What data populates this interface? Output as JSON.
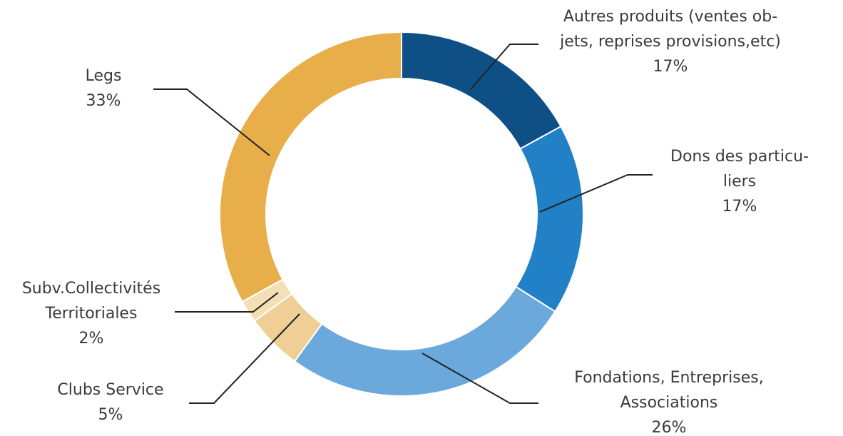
{
  "chart_data": {
    "type": "pie",
    "categories": [
      "Autres produits (ventes ob-\njets, reprises provisions,etc)",
      "Dons des particu-\nliers",
      "Fondations, Entreprises,\nAssociations",
      "Clubs Service",
      "Subv.Collectivités\nTerritoriales",
      "Legs"
    ],
    "values": [
      17,
      17,
      26,
      5,
      2,
      33
    ],
    "value_labels": [
      "17%",
      "17%",
      "26%",
      "5%",
      "2%",
      "33%"
    ],
    "colors": [
      "#0e4f86",
      "#2281c6",
      "#6ba9dd",
      "#efcf95",
      "#f3dfb3",
      "#e8ae4a"
    ]
  }
}
